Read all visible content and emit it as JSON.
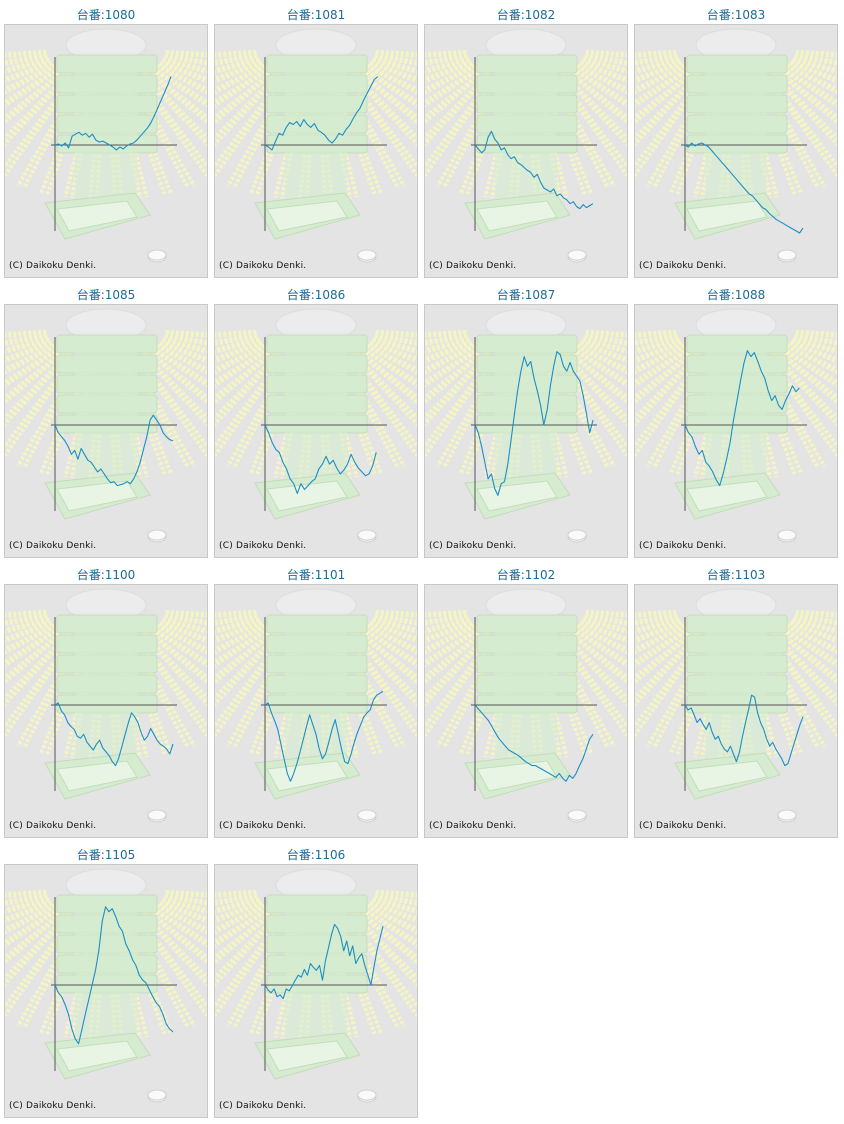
{
  "colors": {
    "title": "#1a6b9a",
    "line": "#1b8fc4",
    "axis": "#555555",
    "background": "#e4e4e4",
    "rays": "#f4f4c4",
    "machine": "#d6ecd0"
  },
  "icons": [
    "sunburst-background",
    "pachislot-machine-background",
    "coin-icon"
  ],
  "copyright": "(C) Daikoku Denki.",
  "chart_data": [
    {
      "type": "line",
      "title": "台番:1080",
      "y": [
        0,
        1,
        -1,
        2,
        -3,
        9,
        11,
        13,
        10,
        12,
        8,
        11,
        5,
        3,
        4,
        2,
        0,
        -2,
        -5,
        -2,
        -4,
        -1,
        1,
        2,
        5,
        9,
        13,
        17,
        22,
        29,
        37,
        45,
        53,
        61,
        70
      ]
    },
    {
      "type": "line",
      "title": "台番:1081",
      "y": [
        0,
        -2,
        -5,
        4,
        12,
        10,
        18,
        23,
        21,
        24,
        19,
        26,
        21,
        18,
        22,
        15,
        13,
        10,
        5,
        2,
        6,
        12,
        10,
        16,
        20,
        27,
        33,
        38,
        46,
        53,
        60,
        67,
        70
      ]
    },
    {
      "type": "line",
      "title": "台番:1082",
      "y": [
        0,
        -4,
        -8,
        -5,
        8,
        14,
        6,
        2,
        -5,
        -3,
        -10,
        -14,
        -12,
        -18,
        -20,
        -23,
        -26,
        -28,
        -33,
        -30,
        -38,
        -44,
        -46,
        -48,
        -45,
        -52,
        -50,
        -54,
        -56,
        -60,
        -58,
        -63,
        -65,
        -61,
        -64,
        -62,
        -60
      ]
    },
    {
      "type": "line",
      "title": "台番:1083",
      "y": [
        0,
        -2,
        2,
        -1,
        1,
        2,
        0,
        -2,
        -6,
        -10,
        -14,
        -18,
        -22,
        -26,
        -30,
        -34,
        -38,
        -42,
        -46,
        -50,
        -52,
        -56,
        -60,
        -64,
        -66,
        -70,
        -73,
        -76,
        -78,
        -80,
        -82,
        -84,
        -86,
        -88,
        -90,
        -85
      ]
    },
    {
      "type": "line",
      "title": "台番:1085",
      "y": [
        0,
        -8,
        -12,
        -16,
        -22,
        -30,
        -26,
        -35,
        -24,
        -30,
        -36,
        -38,
        -43,
        -48,
        -45,
        -50,
        -55,
        -59,
        -58,
        -62,
        -61,
        -60,
        -58,
        -60,
        -55,
        -48,
        -38,
        -25,
        -12,
        5,
        10,
        5,
        0,
        -8,
        -12,
        -15,
        -16
      ]
    },
    {
      "type": "line",
      "title": "台番:1086",
      "y": [
        0,
        -8,
        -18,
        -25,
        -28,
        -38,
        -45,
        -55,
        -60,
        -70,
        -60,
        -66,
        -62,
        -58,
        -55,
        -45,
        -40,
        -32,
        -40,
        -36,
        -44,
        -50,
        -46,
        -40,
        -30,
        -38,
        -44,
        -48,
        -52,
        -50,
        -42,
        -28
      ]
    },
    {
      "type": "line",
      "title": "台番:1087",
      "y": [
        0,
        -8,
        -22,
        -38,
        -55,
        -50,
        -65,
        -72,
        -60,
        -58,
        -40,
        -15,
        10,
        35,
        55,
        70,
        60,
        65,
        48,
        35,
        20,
        0,
        15,
        40,
        60,
        75,
        72,
        60,
        55,
        64,
        55,
        50,
        45,
        30,
        12,
        -8,
        5
      ]
    },
    {
      "type": "line",
      "title": "台番:1088",
      "y": [
        0,
        -8,
        -12,
        -22,
        -30,
        -26,
        -38,
        -42,
        -48,
        -56,
        -62,
        -50,
        -35,
        -18,
        5,
        25,
        45,
        63,
        76,
        70,
        74,
        65,
        55,
        48,
        35,
        25,
        30,
        20,
        16,
        25,
        32,
        40,
        34,
        38
      ]
    },
    {
      "type": "line",
      "title": "台番:1100",
      "y": [
        0,
        2,
        -6,
        -10,
        -18,
        -22,
        -25,
        -32,
        -34,
        -30,
        -38,
        -42,
        -46,
        -40,
        -36,
        -44,
        -48,
        -52,
        -58,
        -62,
        -54,
        -42,
        -30,
        -18,
        -8,
        -12,
        -18,
        -28,
        -36,
        -32,
        -24,
        -30,
        -36,
        -40,
        -42,
        -45,
        -50,
        -40
      ]
    },
    {
      "type": "line",
      "title": "台番:1101",
      "y": [
        0,
        2,
        -8,
        -16,
        -25,
        -40,
        -55,
        -70,
        -78,
        -70,
        -60,
        -48,
        -35,
        -22,
        -10,
        -20,
        -30,
        -45,
        -55,
        -50,
        -38,
        -25,
        -15,
        -30,
        -45,
        -58,
        -60,
        -50,
        -38,
        -28,
        -20,
        -12,
        -8,
        -5,
        5,
        10,
        12,
        14
      ]
    },
    {
      "type": "line",
      "title": "台番:1102",
      "y": [
        0,
        -4,
        -8,
        -12,
        -16,
        -22,
        -28,
        -34,
        -38,
        -42,
        -46,
        -48,
        -50,
        -52,
        -55,
        -58,
        -60,
        -62,
        -62,
        -64,
        -66,
        -68,
        -70,
        -72,
        -74,
        -70,
        -75,
        -78,
        -72,
        -75,
        -70,
        -62,
        -55,
        -45,
        -35,
        -30
      ]
    },
    {
      "type": "line",
      "title": "台番:1103",
      "y": [
        0,
        -5,
        -3,
        -10,
        -18,
        -14,
        -20,
        -25,
        -18,
        -28,
        -35,
        -32,
        -40,
        -45,
        -48,
        -42,
        -50,
        -58,
        -48,
        -32,
        -18,
        -5,
        10,
        8,
        -8,
        -18,
        -25,
        -35,
        -42,
        -38,
        -45,
        -50,
        -55,
        -62,
        -60,
        -50,
        -40,
        -30,
        -20,
        -12
      ]
    },
    {
      "type": "line",
      "title": "台番:1105",
      "y": [
        0,
        -8,
        -12,
        -20,
        -30,
        -45,
        -55,
        -60,
        -45,
        -30,
        -15,
        0,
        15,
        35,
        65,
        80,
        75,
        78,
        70,
        60,
        55,
        42,
        35,
        26,
        20,
        10,
        5,
        2,
        -5,
        -12,
        -18,
        -22,
        -30,
        -40,
        -45,
        -48
      ]
    },
    {
      "type": "line",
      "title": "台番:1106",
      "y": [
        0,
        -5,
        -8,
        -4,
        -12,
        -10,
        -14,
        -4,
        -6,
        -1,
        5,
        10,
        8,
        16,
        10,
        22,
        18,
        15,
        20,
        5,
        25,
        38,
        52,
        62,
        58,
        50,
        35,
        45,
        30,
        40,
        22,
        28,
        32,
        20,
        10,
        0,
        18,
        35,
        48,
        60
      ]
    }
  ]
}
